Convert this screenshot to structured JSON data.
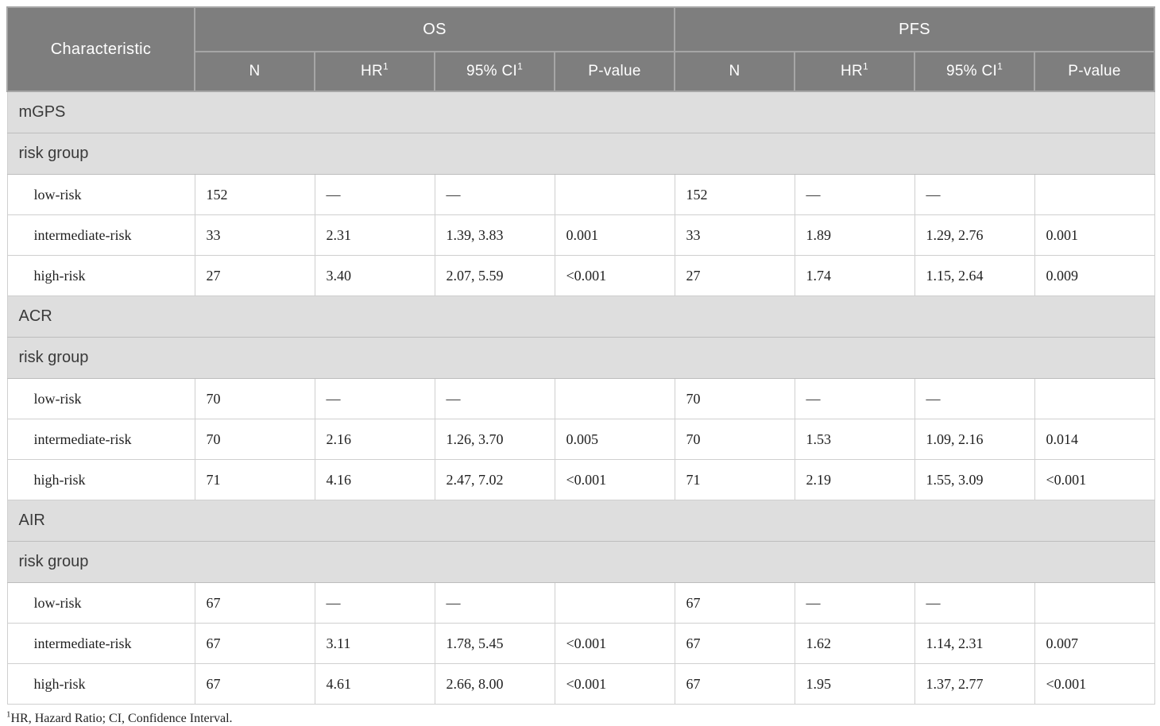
{
  "table": {
    "characteristic_header": "Characteristic",
    "groups": [
      {
        "label": "OS"
      },
      {
        "label": "PFS"
      }
    ],
    "columns": [
      {
        "label": "N",
        "sup": ""
      },
      {
        "label": "HR",
        "sup": "1"
      },
      {
        "label": "95% CI",
        "sup": "1"
      },
      {
        "label": "P-value",
        "sup": ""
      },
      {
        "label": "N",
        "sup": ""
      },
      {
        "label": "HR",
        "sup": "1"
      },
      {
        "label": "95% CI",
        "sup": "1"
      },
      {
        "label": "P-value",
        "sup": ""
      }
    ],
    "sections": [
      {
        "name": "mGPS",
        "subheading": "risk group",
        "rows": [
          {
            "cells": [
              "low-risk",
              "152",
              "—",
              "—",
              "",
              "152",
              "—",
              "—",
              ""
            ]
          },
          {
            "cells": [
              "intermediate-risk",
              "33",
              "2.31",
              "1.39, 3.83",
              "0.001",
              "33",
              "1.89",
              "1.29, 2.76",
              "0.001"
            ]
          },
          {
            "cells": [
              "high-risk",
              "27",
              "3.40",
              "2.07, 5.59",
              "<0.001",
              "27",
              "1.74",
              "1.15, 2.64",
              "0.009"
            ]
          }
        ]
      },
      {
        "name": "ACR",
        "subheading": "risk group",
        "rows": [
          {
            "cells": [
              "low-risk",
              "70",
              "—",
              "—",
              "",
              "70",
              "—",
              "—",
              ""
            ]
          },
          {
            "cells": [
              "intermediate-risk",
              "70",
              "2.16",
              "1.26, 3.70",
              "0.005",
              "70",
              "1.53",
              "1.09, 2.16",
              "0.014"
            ]
          },
          {
            "cells": [
              "high-risk",
              "71",
              "4.16",
              "2.47, 7.02",
              "<0.001",
              "71",
              "2.19",
              "1.55, 3.09",
              "<0.001"
            ]
          }
        ]
      },
      {
        "name": "AIR",
        "subheading": "risk group",
        "rows": [
          {
            "cells": [
              "low-risk",
              "67",
              "—",
              "—",
              "",
              "67",
              "—",
              "—",
              ""
            ]
          },
          {
            "cells": [
              "intermediate-risk",
              "67",
              "3.11",
              "1.78, 5.45",
              "<0.001",
              "67",
              "1.62",
              "1.14, 2.31",
              "0.007"
            ]
          },
          {
            "cells": [
              "high-risk",
              "67",
              "4.61",
              "2.66, 8.00",
              "<0.001",
              "67",
              "1.95",
              "1.37, 2.77",
              "<0.001"
            ]
          }
        ]
      }
    ],
    "footnote": {
      "sup": "1",
      "text": "HR, Hazard Ratio; CI, Confidence Interval."
    }
  },
  "colors": {
    "header_bg": "#7e7e7e",
    "header_text": "#ffffff",
    "header_divider": "#a6a6a6",
    "section_bg": "#dedede",
    "section_text": "#3a3a3a",
    "cell_border": "#cfcfcf",
    "section_border": "#bdbdbd",
    "body_text": "#1f1f1f"
  }
}
